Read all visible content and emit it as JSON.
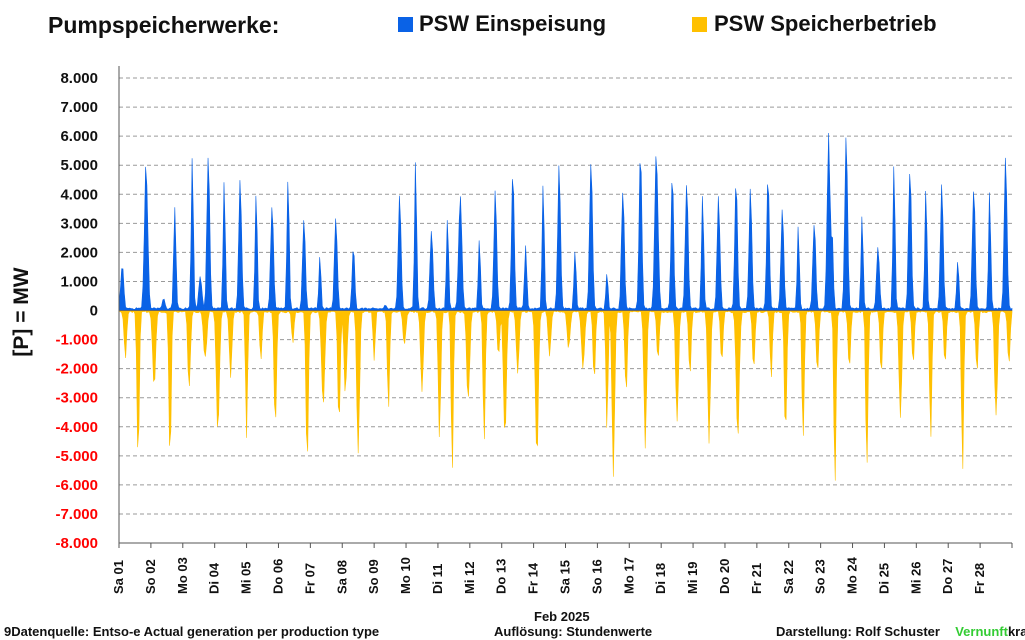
{
  "header": {
    "title": "Pumpspeicherwerke:",
    "legend": [
      {
        "label": "PSW Einspeisung",
        "color": "#0a62e6"
      },
      {
        "label": "PSW Speicherbetrieb",
        "color": "#ffc000"
      }
    ]
  },
  "chart_data": {
    "type": "area",
    "ylabel": "[P] = MW",
    "xlabel": "Feb 2025",
    "ylim": [
      -8000,
      8000
    ],
    "yticks": [
      "8.000",
      "7.000",
      "6.000",
      "5.000",
      "4.000",
      "3.000",
      "2.000",
      "1.000",
      "0",
      "-1.000",
      "-2.000",
      "-3.000",
      "-4.000",
      "-5.000",
      "-6.000",
      "-7.000",
      "-8.000"
    ],
    "ytick_values": [
      8000,
      7000,
      6000,
      5000,
      4000,
      3000,
      2000,
      1000,
      0,
      -1000,
      -2000,
      -3000,
      -4000,
      -5000,
      -6000,
      -7000,
      -8000
    ],
    "negative_tick_color": "#ff0000",
    "grid": "horizontal dashed",
    "resolution_note": "hourly",
    "x_day_labels": [
      "Sa 01",
      "So 02",
      "Mo 03",
      "Di 04",
      "Mi 05",
      "Do 06",
      "Fr 07",
      "Sa 08",
      "So 09",
      "Mo 10",
      "Di 11",
      "Mi 12",
      "Do 13",
      "Fr 14",
      "Sa 15",
      "So 16",
      "Mo 17",
      "Di 18",
      "Mi 19",
      "Do 20",
      "Fr 21",
      "Sa 22",
      "So 23",
      "Mo 24",
      "Di 25",
      "Mi 26",
      "Do 27",
      "Fr 28"
    ],
    "label_every_other_day": true,
    "series": [
      {
        "name": "PSW Einspeisung",
        "color": "#0a62e6",
        "daily_peaks": [
          [
            1.1,
            1600
          ],
          [
            1.85,
            5000
          ],
          [
            2.4,
            400
          ],
          [
            2.75,
            3400
          ],
          [
            3.3,
            5300
          ],
          [
            3.55,
            1200
          ],
          [
            3.8,
            5300
          ],
          [
            4.3,
            4400
          ],
          [
            4.8,
            4500
          ],
          [
            5.3,
            4100
          ],
          [
            5.8,
            3600
          ],
          [
            6.3,
            4700
          ],
          [
            6.8,
            3000
          ],
          [
            7.3,
            1800
          ],
          [
            7.8,
            3200
          ],
          [
            8.35,
            2200
          ],
          [
            9.35,
            200
          ],
          [
            9.8,
            3800
          ],
          [
            10.3,
            5100
          ],
          [
            10.8,
            2900
          ],
          [
            11.3,
            3200
          ],
          [
            11.7,
            4000
          ],
          [
            12.3,
            2500
          ],
          [
            12.8,
            4100
          ],
          [
            13.35,
            5100
          ],
          [
            13.75,
            2200
          ],
          [
            14.3,
            4400
          ],
          [
            14.8,
            4800
          ],
          [
            15.3,
            2200
          ],
          [
            15.8,
            5400
          ],
          [
            16.3,
            1300
          ],
          [
            16.8,
            4200
          ],
          [
            17.35,
            5800
          ],
          [
            17.85,
            5500
          ],
          [
            18.35,
            4700
          ],
          [
            18.8,
            4600
          ],
          [
            19.3,
            4200
          ],
          [
            19.8,
            3800
          ],
          [
            20.35,
            4700
          ],
          [
            20.8,
            4200
          ],
          [
            21.35,
            4600
          ],
          [
            21.8,
            3400
          ],
          [
            22.3,
            2900
          ],
          [
            22.8,
            3100
          ],
          [
            23.25,
            5900
          ],
          [
            23.35,
            2900
          ],
          [
            23.8,
            6100
          ],
          [
            24.3,
            3200
          ],
          [
            24.8,
            2300
          ],
          [
            25.3,
            4900
          ],
          [
            25.8,
            5000
          ],
          [
            26.3,
            4300
          ],
          [
            26.8,
            4200
          ],
          [
            27.3,
            1800
          ],
          [
            27.8,
            4300
          ],
          [
            28.3,
            4100
          ],
          [
            28.8,
            5200
          ]
        ]
      },
      {
        "name": "PSW Speicherbetrieb",
        "color": "#ffc000",
        "daily_peaks": [
          [
            1.2,
            -1600
          ],
          [
            1.6,
            -5200
          ],
          [
            2.1,
            -2700
          ],
          [
            2.6,
            -5000
          ],
          [
            3.2,
            -2800
          ],
          [
            3.7,
            -1700
          ],
          [
            4.1,
            -4200
          ],
          [
            4.5,
            -2200
          ],
          [
            5.0,
            -4400
          ],
          [
            5.45,
            -1800
          ],
          [
            5.9,
            -4200
          ],
          [
            6.45,
            -1200
          ],
          [
            6.9,
            -5100
          ],
          [
            7.4,
            -3300
          ],
          [
            7.9,
            -4000
          ],
          [
            8.1,
            -2800
          ],
          [
            8.5,
            -5100
          ],
          [
            9.0,
            -1800
          ],
          [
            9.45,
            -3500
          ],
          [
            9.95,
            -1200
          ],
          [
            10.5,
            -2900
          ],
          [
            11.05,
            -4200
          ],
          [
            11.45,
            -5300
          ],
          [
            11.95,
            -3200
          ],
          [
            12.45,
            -4400
          ],
          [
            12.9,
            -1600
          ],
          [
            13.1,
            -4300
          ],
          [
            13.5,
            -2200
          ],
          [
            14.1,
            -5100
          ],
          [
            14.5,
            -1600
          ],
          [
            15.1,
            -1300
          ],
          [
            15.55,
            -1900
          ],
          [
            15.9,
            -2300
          ],
          [
            16.3,
            -4000
          ],
          [
            16.5,
            -5500
          ],
          [
            16.9,
            -2900
          ],
          [
            17.5,
            -4500
          ],
          [
            17.9,
            -1800
          ],
          [
            18.5,
            -4000
          ],
          [
            18.9,
            -2200
          ],
          [
            19.5,
            -4500
          ],
          [
            19.9,
            -1800
          ],
          [
            20.4,
            -4300
          ],
          [
            20.9,
            -2000
          ],
          [
            21.45,
            -2400
          ],
          [
            21.9,
            -4300
          ],
          [
            22.45,
            -4700
          ],
          [
            22.9,
            -2200
          ],
          [
            23.45,
            -6000
          ],
          [
            23.9,
            -2000
          ],
          [
            24.45,
            -5600
          ],
          [
            24.9,
            -2100
          ],
          [
            25.5,
            -3800
          ],
          [
            25.9,
            -1800
          ],
          [
            26.45,
            -4600
          ],
          [
            26.9,
            -1800
          ],
          [
            27.45,
            -5700
          ],
          [
            27.9,
            -2100
          ],
          [
            28.5,
            -3800
          ],
          [
            28.9,
            -1900
          ]
        ]
      }
    ]
  },
  "footer": {
    "source": "9Datenquelle: Entso-e  Actual generation per production type",
    "resolution": "Auflösung: Stundenwerte",
    "author": "Darstellung:  Rolf Schuster",
    "brand_green": "Vernunft",
    "brand_black": "kraft",
    "brand_color": "#33cc33"
  }
}
